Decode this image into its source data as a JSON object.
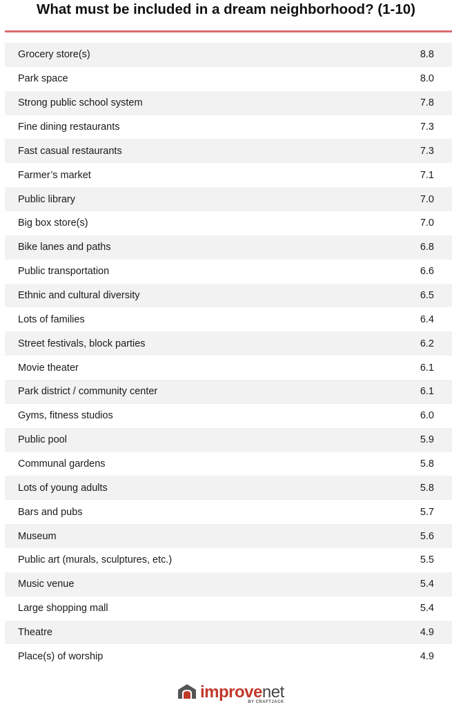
{
  "chart_data": {
    "type": "table",
    "title": "What must be included in a dream neighborhood? (1-10)",
    "categories": [
      "Grocery store(s)",
      "Park space",
      "Strong public school system",
      "Fine dining restaurants",
      "Fast casual restaurants",
      "Farmer’s market",
      "Public library",
      "Big box store(s)",
      "Bike lanes and paths",
      "Public transportation",
      "Ethnic and cultural diversity",
      "Lots of families",
      "Street festivals, block parties",
      "Movie theater",
      "Park district / community center",
      "Gyms, fitness studios",
      "Public pool",
      "Communal gardens",
      "Lots of young adults",
      "Bars and pubs",
      "Museum",
      "Public art (murals, sculptures, etc.)",
      "Music venue",
      "Large shopping mall",
      "Theatre",
      "Place(s) of worship"
    ],
    "values": [
      8.8,
      8.0,
      7.8,
      7.3,
      7.3,
      7.1,
      7.0,
      7.0,
      6.8,
      6.6,
      6.5,
      6.4,
      6.2,
      6.1,
      6.1,
      6.0,
      5.9,
      5.8,
      5.8,
      5.7,
      5.6,
      5.5,
      5.4,
      5.4,
      4.9,
      4.9
    ],
    "value_format": "one-decimal"
  },
  "brand": {
    "name_part1": "improve",
    "name_part2": "net",
    "byline": "BY CRAFTJACK",
    "icon": "house-arch-icon"
  },
  "colors": {
    "rule": "#d96b6e",
    "row_shade": "#f2f2f2",
    "brand_red": "#c0392b",
    "brand_gray": "#555555"
  }
}
